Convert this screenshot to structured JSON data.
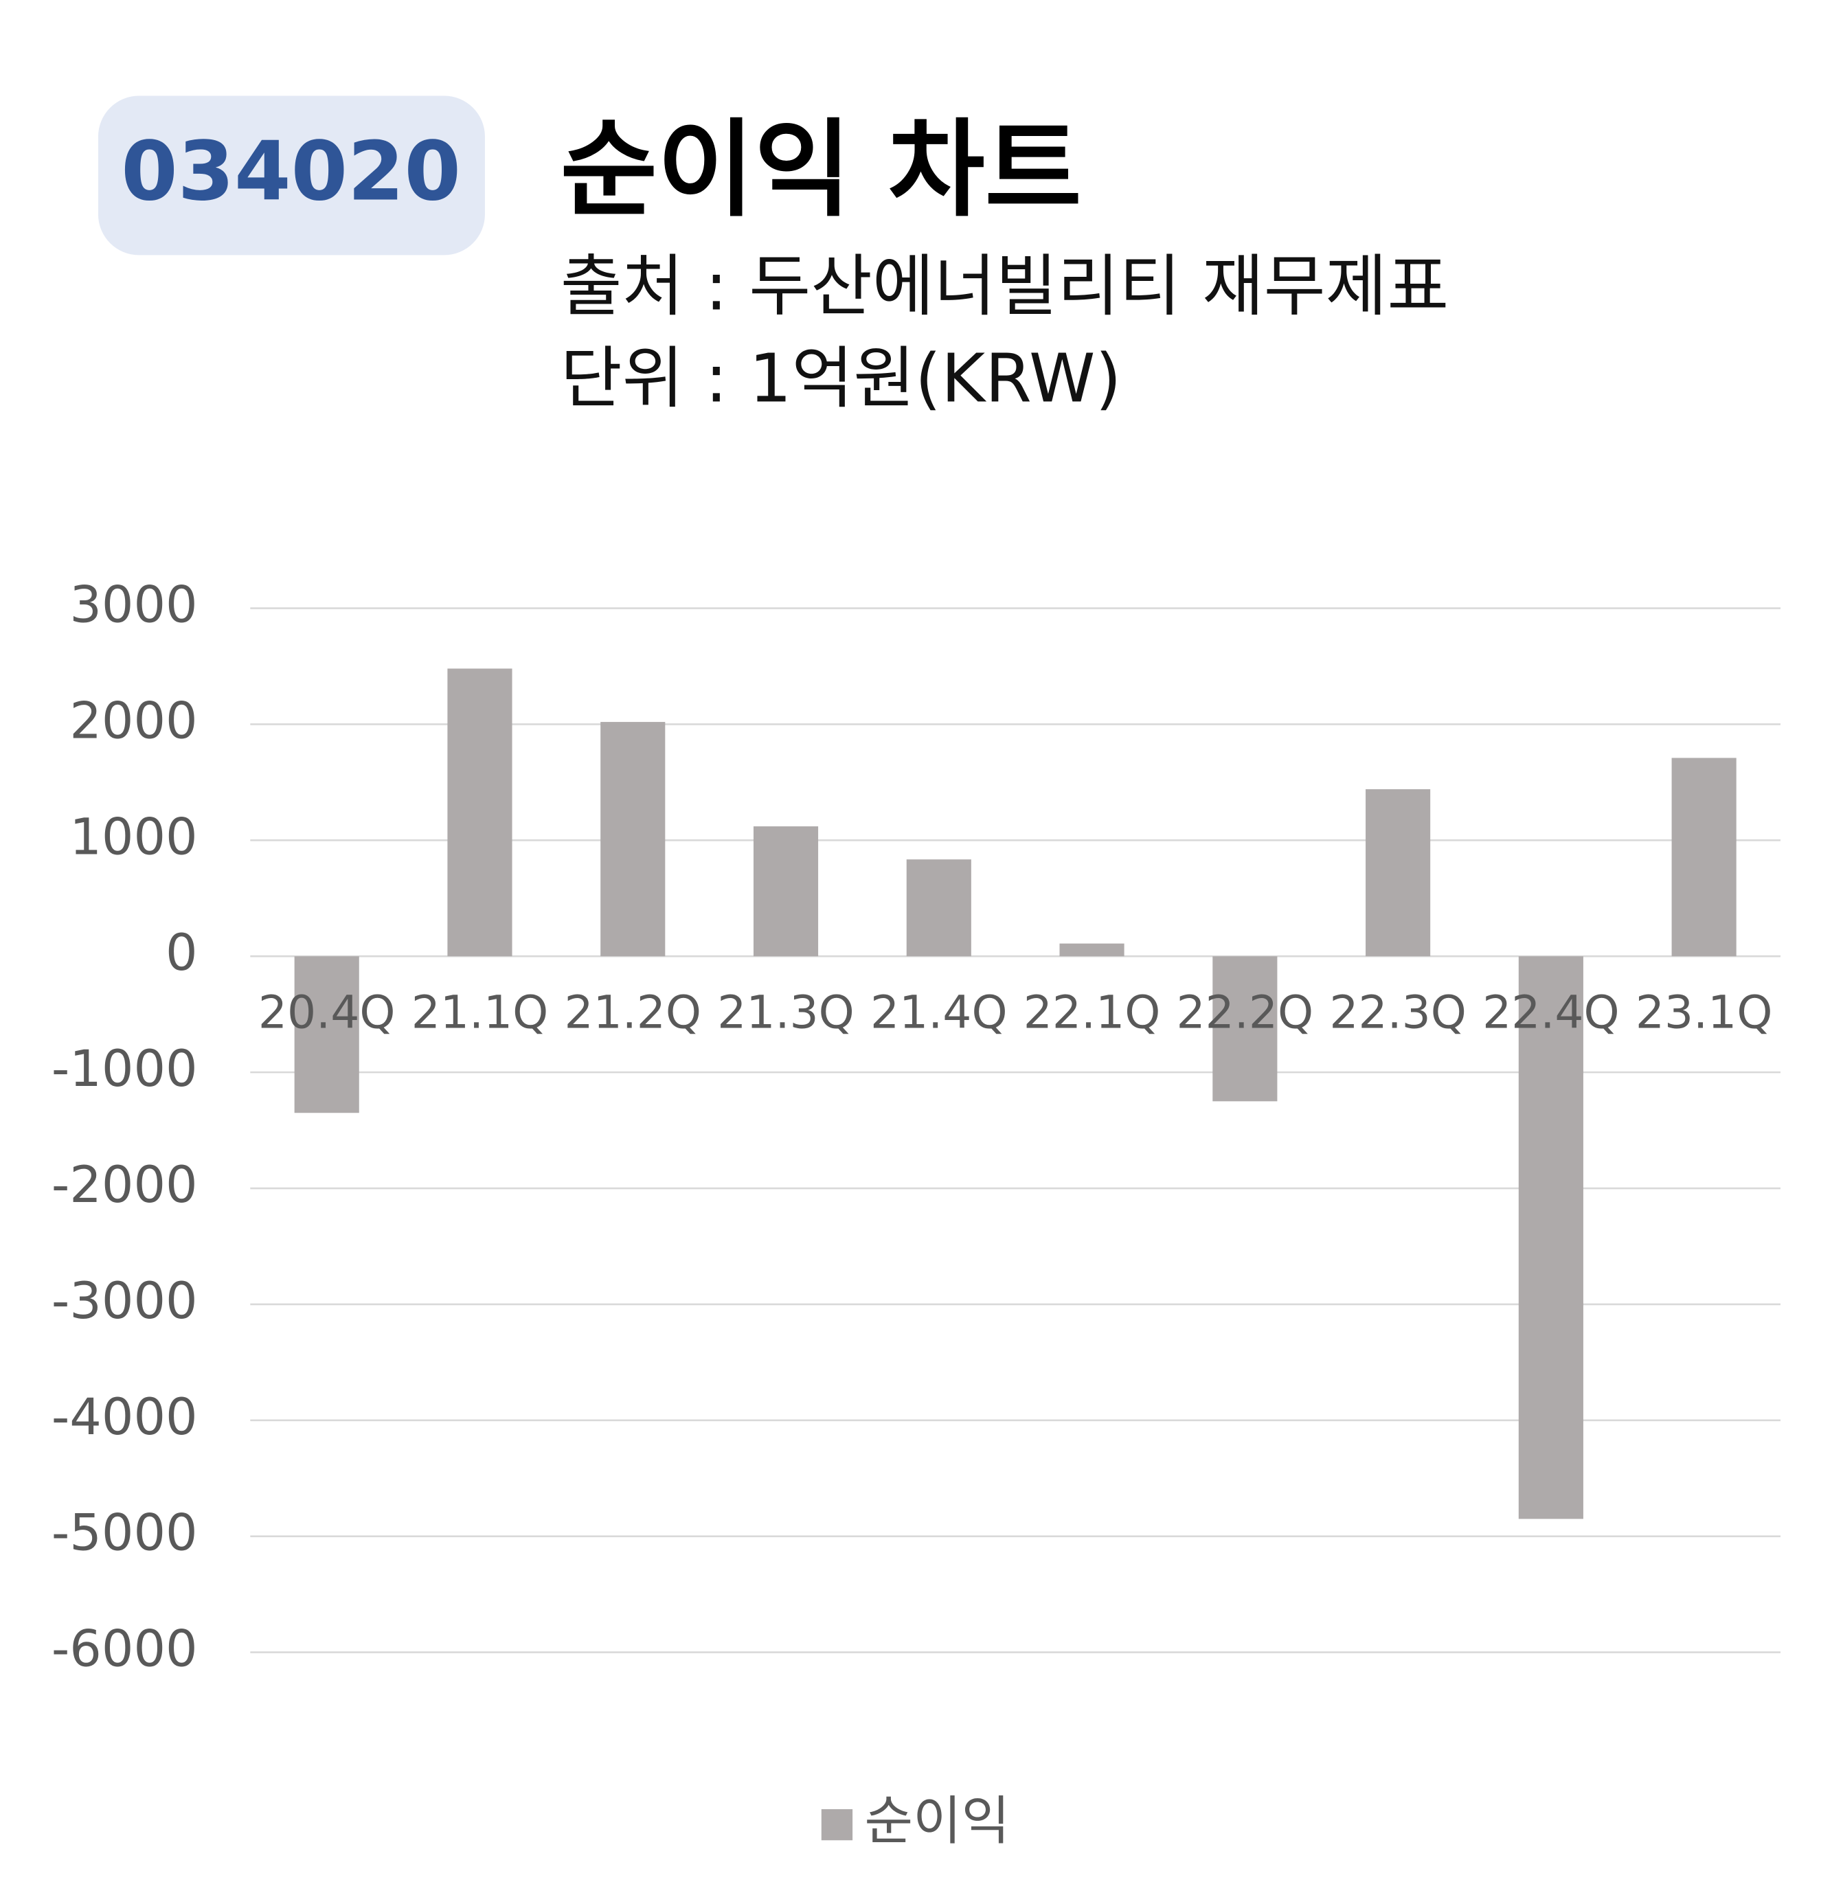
{
  "header": {
    "code": "034020"
  },
  "chart_data": {
    "type": "bar",
    "title": "순이익 차트",
    "source": "출처 : 두산에너빌리티 재무제표",
    "unit": "단위 : 1억원(KRW)",
    "categories": [
      "20.4Q",
      "21.1Q",
      "21.2Q",
      "21.3Q",
      "21.4Q",
      "22.1Q",
      "22.2Q",
      "22.3Q",
      "22.4Q",
      "23.1Q"
    ],
    "series": [
      {
        "name": "순이익",
        "color": "#aeaaaa",
        "values": [
          -1350,
          2480,
          2020,
          1120,
          835,
          110,
          -1250,
          1440,
          -4850,
          1710
        ]
      }
    ],
    "ylim": [
      -6000,
      3000
    ],
    "yticks": [
      3000,
      2000,
      1000,
      0,
      -1000,
      -2000,
      -3000,
      -4000,
      -5000,
      -6000
    ],
    "grid": true,
    "legend": "bottom"
  }
}
